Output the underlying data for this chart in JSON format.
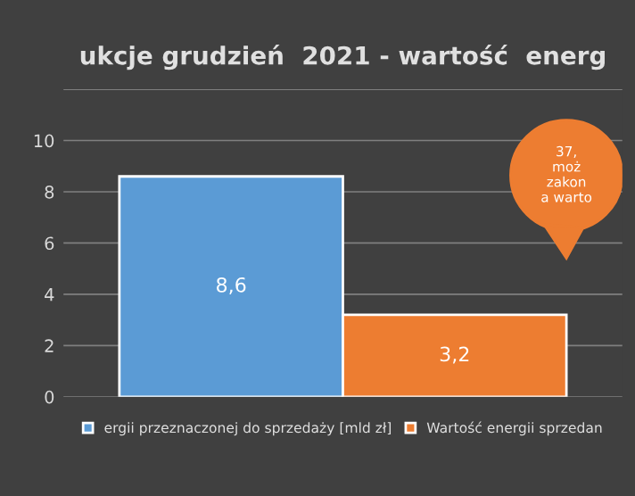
{
  "chart_data": {
    "type": "bar",
    "title": "ukcje grudzień  2021 - wartość  energ",
    "categories": [
      null
    ],
    "series": [
      {
        "name": "ergii przeznaczonej do sprzedaży [mld zł]",
        "color": "#5b9bd5",
        "values": [
          8.6
        ],
        "value_labels": [
          "8,6"
        ]
      },
      {
        "name": "Wartość energii sprzedan",
        "color": "#ed7d31",
        "values": [
          3.2
        ],
        "value_labels": [
          "3,2"
        ]
      }
    ],
    "ylim": [
      0,
      12
    ],
    "yticks": [
      0,
      2,
      4,
      6,
      8,
      10,
      {
        "value": 12,
        "label": null
      }
    ],
    "grid": "y",
    "legend": "bottom",
    "annotations": [
      "37,\nmoż\nzakon\na warto"
    ]
  }
}
